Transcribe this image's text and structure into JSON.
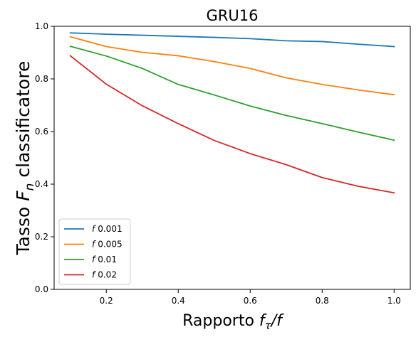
{
  "chart_data": {
    "type": "line",
    "title": "GRU16",
    "xlabel": "Rapporto f_τ/f",
    "ylabel": "Tasso F_n classificatore",
    "xlim": [
      0.055,
      1.045
    ],
    "ylim": [
      0.0,
      1.0
    ],
    "xticks": [
      0.2,
      0.4,
      0.6,
      0.8,
      1.0
    ],
    "xtick_labels": [
      "0.2",
      "0.4",
      "0.6",
      "0.8",
      "1.0"
    ],
    "yticks": [
      0.0,
      0.2,
      0.4,
      0.6,
      0.8,
      1.0
    ],
    "ytick_labels": [
      "0.0",
      "0.2",
      "0.4",
      "0.6",
      "0.8",
      "1.0"
    ],
    "grid": false,
    "legend_position": "lower-left",
    "x": [
      0.1,
      0.2,
      0.3,
      0.4,
      0.5,
      0.6,
      0.7,
      0.8,
      0.9,
      1.0
    ],
    "series": [
      {
        "name": "f 0.001",
        "legend_prefix": "f",
        "legend_value": "0.001",
        "color": "#1f77b4",
        "values": [
          0.975,
          0.97,
          0.966,
          0.962,
          0.958,
          0.953,
          0.945,
          0.942,
          0.932,
          0.923
        ]
      },
      {
        "name": "f 0.005",
        "legend_prefix": "f",
        "legend_value": "0.005",
        "color": "#ff7f0e",
        "values": [
          0.96,
          0.923,
          0.901,
          0.888,
          0.866,
          0.84,
          0.804,
          0.779,
          0.758,
          0.74
        ]
      },
      {
        "name": "f 0.01",
        "legend_prefix": "f",
        "legend_value": "0.01",
        "color": "#2ca02c",
        "values": [
          0.924,
          0.887,
          0.84,
          0.779,
          0.739,
          0.697,
          0.661,
          0.63,
          0.598,
          0.567
        ]
      },
      {
        "name": "f 0.02",
        "legend_prefix": "f",
        "legend_value": "0.02",
        "color": "#d62728",
        "values": [
          0.888,
          0.78,
          0.698,
          0.63,
          0.566,
          0.516,
          0.474,
          0.425,
          0.392,
          0.367
        ]
      }
    ]
  }
}
